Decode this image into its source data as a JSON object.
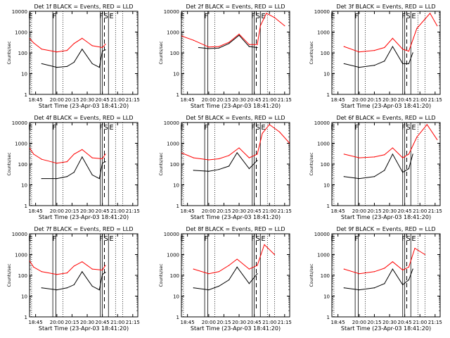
{
  "figure": {
    "xlabel": "Start Time (23-Apr-03 18:41:20)",
    "ylabel": "Counts/sec",
    "x_tick_labels": [
      "18:45",
      "20:00",
      "20:15",
      "20:30",
      "20:45",
      "21:00",
      "21:15"
    ],
    "y_tick_labels": [
      "1",
      "10",
      "100",
      "1000",
      "10000"
    ],
    "event_markers": [
      "F",
      "S",
      "E"
    ],
    "colors": {
      "events": "#000000",
      "lld": "#ff0000",
      "axes": "#000000",
      "background": "#ffffff"
    }
  },
  "chart_data": [
    {
      "type": "line",
      "title": "Det 1f BLACK = Events, RED = LLD",
      "x_unit": "minutes after 19:45",
      "ylim": [
        1,
        10000
      ],
      "y_scale": "log",
      "series": [
        {
          "name": "BLACK = Events",
          "color": "#000000",
          "x": [
            0,
            15,
            25,
            32,
            40,
            50,
            57,
            60,
            63
          ],
          "y": [
            30,
            20,
            22,
            35,
            150,
            30,
            20,
            120,
            140
          ]
        },
        {
          "name": "RED = LLD",
          "color": "#ff0000",
          "x": [
            -12,
            -8,
            0,
            15,
            25,
            32,
            40,
            50,
            60,
            63
          ],
          "y": [
            500,
            300,
            150,
            110,
            130,
            280,
            500,
            220,
            180,
            260
          ]
        }
      ]
    },
    {
      "type": "line",
      "title": "Det 2f BLACK = Events, RED = LLD",
      "x_unit": "minutes after 19:45",
      "ylim": [
        1,
        10000
      ],
      "y_scale": "log",
      "series": [
        {
          "name": "BLACK = Events",
          "color": "#000000",
          "x": [
            5,
            15,
            25,
            35,
            45,
            55,
            63
          ],
          "y": [
            180,
            160,
            170,
            280,
            700,
            200,
            180
          ]
        },
        {
          "name": "RED = LLD",
          "color": "#ff0000",
          "x": [
            -12,
            0,
            15,
            25,
            35,
            45,
            55,
            63,
            66,
            72,
            80,
            90
          ],
          "y": [
            650,
            400,
            190,
            200,
            320,
            800,
            250,
            250,
            2000,
            8000,
            5000,
            2000
          ]
        }
      ]
    },
    {
      "type": "line",
      "title": "Det 3f BLACK = Events, RED = LLD",
      "x_unit": "minutes after 19:45",
      "ylim": [
        1,
        10000
      ],
      "y_scale": "log",
      "series": [
        {
          "name": "BLACK = Events",
          "color": "#000000",
          "x": [
            0,
            15,
            30,
            40,
            48,
            58,
            64,
            68
          ],
          "y": [
            30,
            20,
            25,
            40,
            200,
            30,
            30,
            100
          ]
        },
        {
          "name": "RED = LLD",
          "color": "#ff0000",
          "x": [
            0,
            15,
            30,
            40,
            48,
            58,
            64,
            72,
            85,
            92
          ],
          "y": [
            200,
            110,
            130,
            180,
            500,
            150,
            120,
            1500,
            8000,
            2000
          ]
        }
      ]
    },
    {
      "type": "line",
      "title": "Det 4f BLACK = Events, RED = LLD",
      "x_unit": "minutes after 19:45",
      "ylim": [
        1,
        10000
      ],
      "y_scale": "log",
      "series": [
        {
          "name": "BLACK = Events",
          "color": "#000000",
          "x": [
            0,
            15,
            25,
            32,
            40,
            50,
            57,
            60,
            63
          ],
          "y": [
            20,
            20,
            25,
            40,
            220,
            30,
            20,
            110,
            130
          ]
        },
        {
          "name": "RED = LLD",
          "color": "#ff0000",
          "x": [
            -12,
            -8,
            0,
            15,
            25,
            32,
            40,
            50,
            60,
            63
          ],
          "y": [
            600,
            300,
            170,
            110,
            130,
            300,
            500,
            200,
            180,
            300
          ]
        }
      ]
    },
    {
      "type": "line",
      "title": "Det 5f BLACK = Events, RED = LLD",
      "x_unit": "minutes after 19:45",
      "ylim": [
        1,
        10000
      ],
      "y_scale": "log",
      "series": [
        {
          "name": "BLACK = Events",
          "color": "#000000",
          "x": [
            0,
            15,
            25,
            35,
            43,
            55,
            63
          ],
          "y": [
            50,
            45,
            55,
            80,
            350,
            60,
            150
          ]
        },
        {
          "name": "RED = LLD",
          "color": "#ff0000",
          "x": [
            -12,
            0,
            15,
            25,
            35,
            45,
            55,
            63,
            68,
            75,
            85,
            95
          ],
          "y": [
            350,
            200,
            160,
            180,
            260,
            600,
            200,
            300,
            3000,
            8000,
            3500,
            1000
          ]
        }
      ]
    },
    {
      "type": "line",
      "title": "Det 6f BLACK = Events, RED = LLD",
      "x_unit": "minutes after 19:45",
      "ylim": [
        1,
        10000
      ],
      "y_scale": "log",
      "series": [
        {
          "name": "BLACK = Events",
          "color": "#000000",
          "x": [
            0,
            15,
            30,
            40,
            48,
            58,
            64,
            68
          ],
          "y": [
            25,
            20,
            25,
            50,
            300,
            40,
            60,
            300
          ]
        },
        {
          "name": "RED = LLD",
          "color": "#ff0000",
          "x": [
            0,
            15,
            30,
            40,
            48,
            58,
            64,
            72,
            82,
            92
          ],
          "y": [
            300,
            200,
            220,
            280,
            600,
            200,
            300,
            2000,
            8000,
            1500
          ]
        }
      ]
    },
    {
      "type": "line",
      "title": "Det 7f BLACK = Events, RED = LLD",
      "x_unit": "minutes after 19:45",
      "ylim": [
        1,
        10000
      ],
      "y_scale": "log",
      "series": [
        {
          "name": "BLACK = Events",
          "color": "#000000",
          "x": [
            0,
            15,
            25,
            32,
            40,
            50,
            57,
            60,
            63
          ],
          "y": [
            25,
            20,
            25,
            35,
            150,
            30,
            20,
            110,
            140
          ]
        },
        {
          "name": "RED = LLD",
          "color": "#ff0000",
          "x": [
            -12,
            -8,
            0,
            15,
            25,
            32,
            40,
            50,
            60,
            63
          ],
          "y": [
            500,
            250,
            150,
            110,
            130,
            280,
            450,
            200,
            180,
            300
          ]
        }
      ]
    },
    {
      "type": "line",
      "title": "Det 8f BLACK = Events, RED = LLD",
      "x_unit": "minutes after 19:45",
      "ylim": [
        1,
        10000
      ],
      "y_scale": "log",
      "series": [
        {
          "name": "BLACK = Events",
          "color": "#000000",
          "x": [
            0,
            15,
            25,
            35,
            43,
            55,
            63
          ],
          "y": [
            25,
            20,
            30,
            60,
            250,
            40,
            120
          ]
        },
        {
          "name": "RED = LLD",
          "color": "#ff0000",
          "x": [
            0,
            15,
            25,
            35,
            43,
            55,
            63,
            70,
            80
          ],
          "y": [
            200,
            120,
            150,
            300,
            600,
            200,
            300,
            3000,
            1000
          ]
        }
      ]
    },
    {
      "type": "line",
      "title": "Det 9f BLACK = Events, RED = LLD",
      "x_unit": "minutes after 19:45",
      "ylim": [
        1,
        10000
      ],
      "y_scale": "log",
      "series": [
        {
          "name": "BLACK = Events",
          "color": "#000000",
          "x": [
            0,
            15,
            30,
            40,
            48,
            58,
            64,
            68
          ],
          "y": [
            25,
            20,
            25,
            40,
            200,
            35,
            60,
            200
          ]
        },
        {
          "name": "RED = LLD",
          "color": "#ff0000",
          "x": [
            0,
            15,
            30,
            40,
            48,
            58,
            64,
            70,
            80
          ],
          "y": [
            200,
            120,
            150,
            220,
            450,
            180,
            250,
            2000,
            1000
          ]
        }
      ]
    }
  ]
}
